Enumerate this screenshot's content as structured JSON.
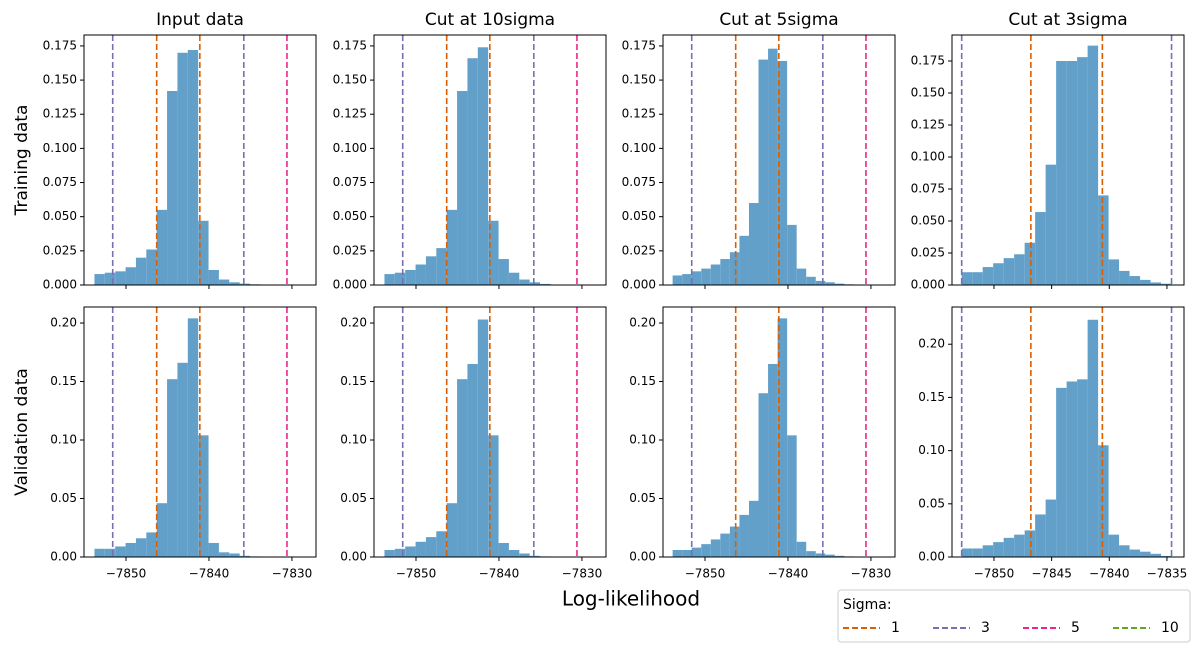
{
  "chart_data": [
    {
      "type": "histogram",
      "title": "Input data",
      "ylabel": "Training data",
      "color": "#62a0ca",
      "bins": [
        -7853.8,
        -7852.55,
        -7851.3,
        -7850.05,
        -7848.8,
        -7847.55,
        -7846.3,
        -7845.05,
        -7843.8,
        -7842.55,
        -7841.3,
        -7840.05,
        -7838.8,
        -7837.55,
        -7836.3,
        -7835.05,
        -7833.8,
        -7832.55
      ],
      "values": [
        0.008,
        0.009,
        0.01,
        0.013,
        0.02,
        0.026,
        0.055,
        0.142,
        0.17,
        0.172,
        0.047,
        0.011,
        0.004,
        0.002,
        0.001,
        0.0005,
        0.0003
      ],
      "xlim": [
        -7855.06,
        -7827.1
      ],
      "xticks": [
        -7850,
        -7840,
        -7830
      ],
      "ylim": [
        0,
        0.183
      ],
      "yticks": [
        {
          "value": 0,
          "label": "0.000"
        },
        {
          "value": 0.025,
          "label": "0.025"
        },
        {
          "value": 0.05,
          "label": "0.050"
        },
        {
          "value": 0.075,
          "label": "0.075"
        },
        {
          "value": 0.1,
          "label": "0.100"
        },
        {
          "value": 0.125,
          "label": "0.125"
        },
        {
          "value": 0.15,
          "label": "0.150"
        },
        {
          "value": 0.175,
          "label": "0.175"
        }
      ],
      "vlines": [
        {
          "value": -7851.6,
          "color": "#7570b3"
        },
        {
          "value": -7846.3,
          "color": "#d95f02"
        },
        {
          "value": -7841.1,
          "color": "#d95f02"
        },
        {
          "value": -7835.8,
          "color": "#7570b3"
        },
        {
          "value": -7830.6,
          "color": "#e7298a"
        }
      ]
    },
    {
      "type": "histogram",
      "title": "Cut at 10sigma",
      "color": "#62a0ca",
      "bins": [
        -7853.8,
        -7852.55,
        -7851.3,
        -7850.05,
        -7848.8,
        -7847.55,
        -7846.3,
        -7845.05,
        -7843.8,
        -7842.55,
        -7841.3,
        -7840.05,
        -7838.8,
        -7837.55,
        -7836.3,
        -7835.05,
        -7833.8
      ],
      "values": [
        0.008,
        0.009,
        0.011,
        0.015,
        0.021,
        0.027,
        0.055,
        0.142,
        0.166,
        0.174,
        0.047,
        0.019,
        0.009,
        0.004,
        0.002,
        0.0008
      ],
      "xlim": [
        -7855.06,
        -7827.1
      ],
      "xticks": [
        -7850,
        -7840,
        -7830
      ],
      "ylim": [
        0,
        0.183
      ],
      "yticks": [
        {
          "value": 0,
          "label": "0.000"
        },
        {
          "value": 0.025,
          "label": "0.025"
        },
        {
          "value": 0.05,
          "label": "0.050"
        },
        {
          "value": 0.075,
          "label": "0.075"
        },
        {
          "value": 0.1,
          "label": "0.100"
        },
        {
          "value": 0.125,
          "label": "0.125"
        },
        {
          "value": 0.15,
          "label": "0.150"
        },
        {
          "value": 0.175,
          "label": "0.175"
        }
      ],
      "vlines": [
        {
          "value": -7851.6,
          "color": "#7570b3"
        },
        {
          "value": -7846.3,
          "color": "#d95f02"
        },
        {
          "value": -7841.1,
          "color": "#d95f02"
        },
        {
          "value": -7835.8,
          "color": "#7570b3"
        },
        {
          "value": -7830.6,
          "color": "#e7298a"
        }
      ]
    },
    {
      "type": "histogram",
      "title": "Cut at 5sigma",
      "color": "#62a0ca",
      "bins": [
        -7853.9,
        -7852.75,
        -7851.6,
        -7850.45,
        -7849.3,
        -7848.15,
        -7847.0,
        -7845.85,
        -7844.7,
        -7843.55,
        -7842.4,
        -7841.25,
        -7840.1,
        -7838.95,
        -7837.8,
        -7836.65,
        -7835.5,
        -7834.35,
        -7833.2,
        -7832.05,
        -7830.9
      ],
      "values": [
        0.007,
        0.008,
        0.01,
        0.012,
        0.015,
        0.019,
        0.024,
        0.036,
        0.06,
        0.165,
        0.173,
        0.164,
        0.044,
        0.012,
        0.006,
        0.003,
        0.002,
        0.001,
        0.0005,
        0.0003
      ],
      "xlim": [
        -7855.06,
        -7827.1
      ],
      "xticks": [
        -7850,
        -7840,
        -7830
      ],
      "ylim": [
        0,
        0.183
      ],
      "yticks": [
        {
          "value": 0,
          "label": "0.000"
        },
        {
          "value": 0.025,
          "label": "0.025"
        },
        {
          "value": 0.05,
          "label": "0.050"
        },
        {
          "value": 0.075,
          "label": "0.075"
        },
        {
          "value": 0.1,
          "label": "0.100"
        },
        {
          "value": 0.125,
          "label": "0.125"
        },
        {
          "value": 0.15,
          "label": "0.150"
        },
        {
          "value": 0.175,
          "label": "0.175"
        }
      ],
      "vlines": [
        {
          "value": -7851.6,
          "color": "#7570b3"
        },
        {
          "value": -7846.3,
          "color": "#d95f02"
        },
        {
          "value": -7841.1,
          "color": "#d95f02"
        },
        {
          "value": -7835.8,
          "color": "#7570b3"
        },
        {
          "value": -7830.6,
          "color": "#e7298a"
        }
      ]
    },
    {
      "type": "histogram",
      "title": "Cut at 3sigma",
      "color": "#62a0ca",
      "bins": [
        -7852.8,
        -7851.89,
        -7850.98,
        -7850.07,
        -7849.16,
        -7848.25,
        -7847.34,
        -7846.43,
        -7845.52,
        -7844.61,
        -7843.7,
        -7842.79,
        -7841.88,
        -7840.97,
        -7840.06,
        -7839.15,
        -7838.24,
        -7837.33,
        -7836.42,
        -7835.51,
        -7834.6
      ],
      "values": [
        0.01,
        0.01,
        0.014,
        0.017,
        0.021,
        0.024,
        0.033,
        0.057,
        0.094,
        0.175,
        0.175,
        0.178,
        0.187,
        0.07,
        0.02,
        0.011,
        0.007,
        0.004,
        0.002,
        0.001
      ],
      "xlim": [
        -7853.64,
        -7833.52
      ],
      "xticks": [
        -7850,
        -7845,
        -7840,
        -7835
      ],
      "ylim": [
        0,
        0.1953
      ],
      "yticks": [
        {
          "value": 0,
          "label": "0.000"
        },
        {
          "value": 0.025,
          "label": "0.025"
        },
        {
          "value": 0.05,
          "label": "0.050"
        },
        {
          "value": 0.075,
          "label": "0.075"
        },
        {
          "value": 0.1,
          "label": "0.100"
        },
        {
          "value": 0.125,
          "label": "0.125"
        },
        {
          "value": 0.15,
          "label": "0.150"
        },
        {
          "value": 0.175,
          "label": "0.175"
        }
      ],
      "vlines": [
        {
          "value": -7852.8,
          "color": "#7570b3"
        },
        {
          "value": -7846.8,
          "color": "#d95f02"
        },
        {
          "value": -7840.6,
          "color": "#d95f02"
        },
        {
          "value": -7834.6,
          "color": "#7570b3"
        }
      ]
    },
    {
      "type": "histogram",
      "ylabel": "Validation data",
      "color": "#62a0ca",
      "bins": [
        -7853.8,
        -7852.55,
        -7851.3,
        -7850.05,
        -7848.8,
        -7847.55,
        -7846.3,
        -7845.05,
        -7843.8,
        -7842.55,
        -7841.3,
        -7840.05,
        -7838.8,
        -7837.55,
        -7836.3,
        -7835.05,
        -7833.8,
        -7832.55
      ],
      "values": [
        0.007,
        0.007,
        0.009,
        0.012,
        0.016,
        0.021,
        0.046,
        0.152,
        0.166,
        0.204,
        0.104,
        0.012,
        0.004,
        0.003,
        0.001,
        0.0005,
        0.0003
      ],
      "xlim": [
        -7855.06,
        -7827.1
      ],
      "xticks": [
        {
          "value": -7850,
          "label": "−7850"
        },
        {
          "value": -7840,
          "label": "−7840"
        },
        {
          "value": -7830,
          "label": "−7830"
        }
      ],
      "ylim": [
        0,
        0.2137
      ],
      "yticks": [
        {
          "value": 0,
          "label": "0.00"
        },
        {
          "value": 0.05,
          "label": "0.05"
        },
        {
          "value": 0.1,
          "label": "0.10"
        },
        {
          "value": 0.15,
          "label": "0.15"
        },
        {
          "value": 0.2,
          "label": "0.20"
        }
      ],
      "vlines": [
        {
          "value": -7851.6,
          "color": "#7570b3"
        },
        {
          "value": -7846.3,
          "color": "#d95f02"
        },
        {
          "value": -7841.1,
          "color": "#d95f02"
        },
        {
          "value": -7835.8,
          "color": "#7570b3"
        },
        {
          "value": -7830.6,
          "color": "#e7298a"
        }
      ]
    },
    {
      "type": "histogram",
      "color": "#62a0ca",
      "bins": [
        -7853.8,
        -7852.55,
        -7851.3,
        -7850.05,
        -7848.8,
        -7847.55,
        -7846.3,
        -7845.05,
        -7843.8,
        -7842.55,
        -7841.3,
        -7840.05,
        -7838.8,
        -7837.55,
        -7836.3,
        -7835.05,
        -7833.8
      ],
      "values": [
        0.006,
        0.007,
        0.009,
        0.013,
        0.017,
        0.022,
        0.046,
        0.152,
        0.165,
        0.203,
        0.104,
        0.012,
        0.006,
        0.003,
        0.001,
        0.0005
      ],
      "xlim": [
        -7855.06,
        -7827.1
      ],
      "xticks": [
        {
          "value": -7850,
          "label": "−7850"
        },
        {
          "value": -7840,
          "label": "−7840"
        },
        {
          "value": -7830,
          "label": "−7830"
        }
      ],
      "ylim": [
        0,
        0.2137
      ],
      "yticks": [
        {
          "value": 0,
          "label": "0.00"
        },
        {
          "value": 0.05,
          "label": "0.05"
        },
        {
          "value": 0.1,
          "label": "0.10"
        },
        {
          "value": 0.15,
          "label": "0.15"
        },
        {
          "value": 0.2,
          "label": "0.20"
        }
      ],
      "vlines": [
        {
          "value": -7851.6,
          "color": "#7570b3"
        },
        {
          "value": -7846.3,
          "color": "#d95f02"
        },
        {
          "value": -7841.1,
          "color": "#d95f02"
        },
        {
          "value": -7835.8,
          "color": "#7570b3"
        },
        {
          "value": -7830.6,
          "color": "#e7298a"
        }
      ]
    },
    {
      "type": "histogram",
      "color": "#62a0ca",
      "bins": [
        -7853.9,
        -7852.75,
        -7851.6,
        -7850.45,
        -7849.3,
        -7848.15,
        -7847.0,
        -7845.85,
        -7844.7,
        -7843.55,
        -7842.4,
        -7841.25,
        -7840.1,
        -7838.95,
        -7837.8,
        -7836.65,
        -7835.5,
        -7834.35,
        -7833.2,
        -7832.05,
        -7830.9
      ],
      "values": [
        0.006,
        0.006,
        0.008,
        0.011,
        0.015,
        0.02,
        0.026,
        0.036,
        0.048,
        0.14,
        0.165,
        0.204,
        0.104,
        0.013,
        0.005,
        0.003,
        0.002,
        0.001,
        0.0005,
        0.0003
      ],
      "xlim": [
        -7855.06,
        -7827.1
      ],
      "xticks": [
        {
          "value": -7850,
          "label": "−7850"
        },
        {
          "value": -7840,
          "label": "−7840"
        },
        {
          "value": -7830,
          "label": "−7830"
        }
      ],
      "ylim": [
        0,
        0.2137
      ],
      "yticks": [
        {
          "value": 0,
          "label": "0.00"
        },
        {
          "value": 0.05,
          "label": "0.05"
        },
        {
          "value": 0.1,
          "label": "0.10"
        },
        {
          "value": 0.15,
          "label": "0.15"
        },
        {
          "value": 0.2,
          "label": "0.20"
        }
      ],
      "vlines": [
        {
          "value": -7851.6,
          "color": "#7570b3"
        },
        {
          "value": -7846.3,
          "color": "#d95f02"
        },
        {
          "value": -7841.1,
          "color": "#d95f02"
        },
        {
          "value": -7835.8,
          "color": "#7570b3"
        },
        {
          "value": -7830.6,
          "color": "#e7298a"
        }
      ]
    },
    {
      "type": "histogram",
      "color": "#62a0ca",
      "bins": [
        -7852.8,
        -7851.89,
        -7850.98,
        -7850.07,
        -7849.16,
        -7848.25,
        -7847.34,
        -7846.43,
        -7845.52,
        -7844.61,
        -7843.7,
        -7842.79,
        -7841.88,
        -7840.97,
        -7840.06,
        -7839.15,
        -7838.24,
        -7837.33,
        -7836.42,
        -7835.51,
        -7834.6
      ],
      "values": [
        0.008,
        0.008,
        0.011,
        0.014,
        0.018,
        0.021,
        0.025,
        0.04,
        0.054,
        0.159,
        0.165,
        0.167,
        0.223,
        0.105,
        0.021,
        0.011,
        0.007,
        0.005,
        0.003,
        0.001
      ],
      "xlim": [
        -7853.64,
        -7833.52
      ],
      "xticks": [
        {
          "value": -7850,
          "label": "−7850"
        },
        {
          "value": -7845,
          "label": "−7845"
        },
        {
          "value": -7840,
          "label": "−7840"
        },
        {
          "value": -7835,
          "label": "−7835"
        }
      ],
      "ylim": [
        0,
        0.235
      ],
      "yticks": [
        {
          "value": 0,
          "label": "0.00"
        },
        {
          "value": 0.05,
          "label": "0.05"
        },
        {
          "value": 0.1,
          "label": "0.10"
        },
        {
          "value": 0.15,
          "label": "0.15"
        },
        {
          "value": 0.2,
          "label": "0.20"
        }
      ],
      "vlines": [
        {
          "value": -7852.8,
          "color": "#7570b3"
        },
        {
          "value": -7846.8,
          "color": "#d95f02"
        },
        {
          "value": -7840.6,
          "color": "#d95f02"
        },
        {
          "value": -7834.6,
          "color": "#7570b3"
        }
      ]
    }
  ],
  "figure": {
    "xlabel": "Log-likelihood",
    "legend": {
      "title": "Sigma:",
      "entries": [
        {
          "name": "1",
          "color": "#d95f02"
        },
        {
          "name": "3",
          "color": "#7570b3"
        },
        {
          "name": "5",
          "color": "#e7298a"
        },
        {
          "name": "10",
          "color": "#66a61e"
        }
      ]
    }
  }
}
